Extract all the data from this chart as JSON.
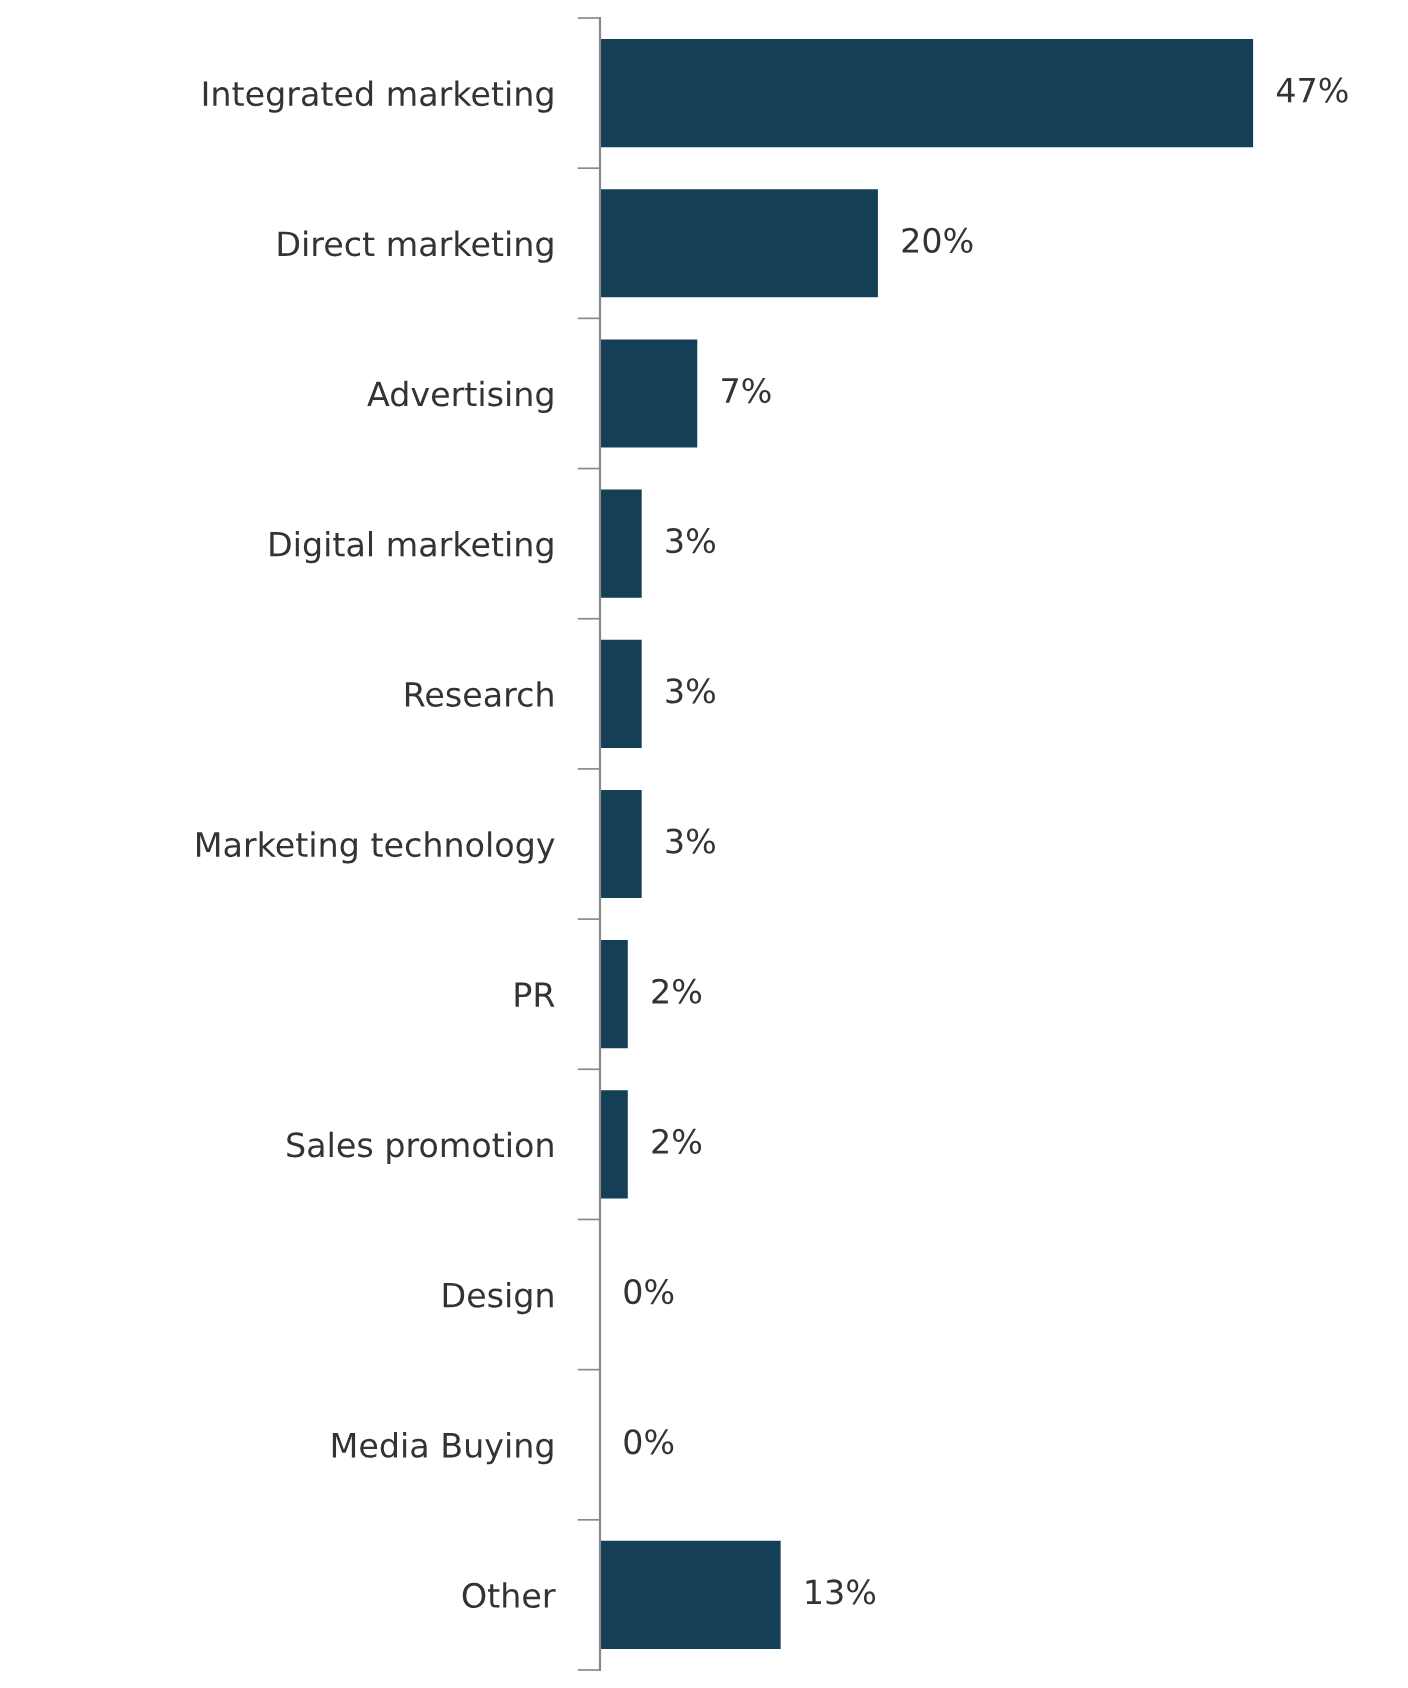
{
  "chart_data": {
    "type": "bar",
    "orientation": "horizontal",
    "categories": [
      "Integrated marketing",
      "Direct marketing",
      "Advertising",
      "Digital marketing",
      "Research",
      "Marketing technology",
      "PR",
      "Sales promotion",
      "Design",
      "Media Buying",
      "Other"
    ],
    "values": [
      47,
      20,
      7,
      3,
      3,
      3,
      2,
      2,
      0,
      0,
      13
    ],
    "value_labels": [
      "47%",
      "20%",
      "7%",
      "3%",
      "3%",
      "3%",
      "2%",
      "2%",
      "0%",
      "0%",
      "13%"
    ],
    "color": "#143f56",
    "tick_labels": "y"
  }
}
